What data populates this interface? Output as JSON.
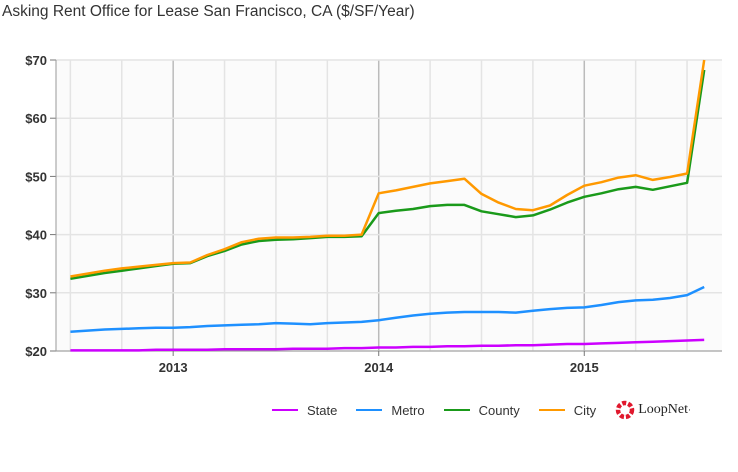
{
  "chart_data": {
    "type": "line",
    "title": "Asking Rent Office for Lease San Francisco, CA ($/SF/Year)",
    "xlabel": "",
    "ylabel": "",
    "ylim": [
      20,
      70
    ],
    "yticks": [
      "$20",
      "$30",
      "$40",
      "$50",
      "$60",
      "$70"
    ],
    "ytick_values": [
      20,
      30,
      40,
      50,
      60,
      70
    ],
    "xticks": [
      "2013",
      "2014",
      "2015"
    ],
    "xtick_values": [
      2013,
      2014,
      2015
    ],
    "xlim": [
      2012.43,
      2015.67
    ],
    "x_start": 2012.5,
    "x_step_months": 1,
    "legend": "bottom-right",
    "grid": true,
    "series": [
      {
        "name": "State",
        "color": "#cc00ff",
        "values": [
          20.1,
          20.1,
          20.1,
          20.1,
          20.1,
          20.2,
          20.2,
          20.2,
          20.2,
          20.3,
          20.3,
          20.3,
          20.3,
          20.4,
          20.4,
          20.4,
          20.5,
          20.5,
          20.6,
          20.6,
          20.7,
          20.7,
          20.8,
          20.8,
          20.9,
          20.9,
          21.0,
          21.0,
          21.1,
          21.2,
          21.2,
          21.3,
          21.4,
          21.5,
          21.6,
          21.7,
          21.8,
          21.9
        ]
      },
      {
        "name": "Metro",
        "color": "#1e90ff",
        "values": [
          23.3,
          23.5,
          23.7,
          23.8,
          23.9,
          24.0,
          24.0,
          24.1,
          24.3,
          24.4,
          24.5,
          24.6,
          24.8,
          24.7,
          24.6,
          24.8,
          24.9,
          25.0,
          25.3,
          25.7,
          26.1,
          26.4,
          26.6,
          26.7,
          26.7,
          26.7,
          26.6,
          26.9,
          27.2,
          27.4,
          27.5,
          27.9,
          28.4,
          28.7,
          28.8,
          29.1,
          29.6,
          31.0
        ]
      },
      {
        "name": "County",
        "color": "#1a9a1a",
        "values": [
          32.4,
          32.9,
          33.4,
          33.8,
          34.2,
          34.6,
          35.0,
          35.1,
          36.3,
          37.2,
          38.3,
          38.9,
          39.1,
          39.2,
          39.4,
          39.6,
          39.6,
          39.7,
          43.7,
          44.1,
          44.4,
          44.9,
          45.1,
          45.1,
          44.0,
          43.5,
          43.0,
          43.3,
          44.3,
          45.5,
          46.5,
          47.1,
          47.8,
          48.2,
          47.7,
          48.3,
          48.9,
          68.3
        ]
      },
      {
        "name": "City",
        "color": "#ff9900",
        "values": [
          32.8,
          33.3,
          33.8,
          34.2,
          34.5,
          34.8,
          35.1,
          35.2,
          36.5,
          37.5,
          38.7,
          39.3,
          39.5,
          39.5,
          39.6,
          39.8,
          39.8,
          40.0,
          47.1,
          47.6,
          48.2,
          48.8,
          49.2,
          49.6,
          47.0,
          45.5,
          44.4,
          44.2,
          45.0,
          46.8,
          48.4,
          49.0,
          49.8,
          50.2,
          49.4,
          49.9,
          50.5,
          70.0
        ]
      }
    ]
  },
  "legend": {
    "brand": "LoopNet",
    "brand_mark": "·"
  }
}
